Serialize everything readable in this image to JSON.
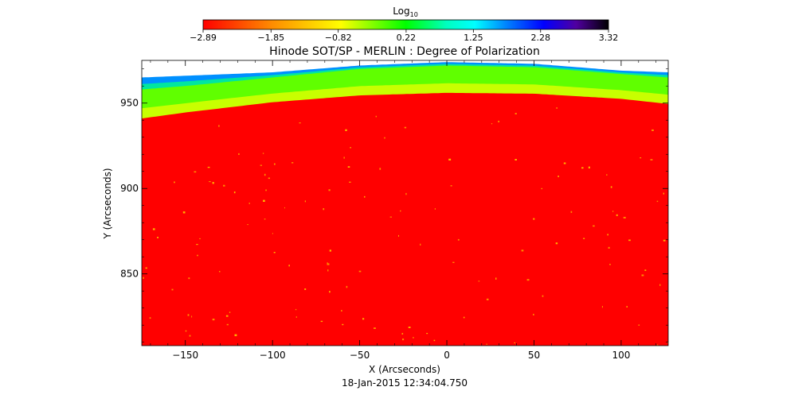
{
  "chart_data": {
    "type": "heatmap",
    "title": "Hinode SOT/SP - MERLIN : Degree of Polarization",
    "xlabel": "X (Arcseconds)",
    "ylabel": "Y (Arcseconds)",
    "date_label": "18-Jan-2015 12:34:04.750",
    "xlim": [
      -175,
      127
    ],
    "ylim": [
      808,
      975
    ],
    "xticks": [
      -150,
      -100,
      -50,
      0,
      50,
      100
    ],
    "yticks": [
      850,
      900,
      950
    ],
    "xtick_labels": [
      "−150",
      "−100",
      "−50",
      "0",
      "50",
      "100"
    ],
    "ytick_labels": [
      "850",
      "900",
      "950"
    ],
    "grid": false,
    "colorbar": {
      "label_base": "Log",
      "label_sub": "10",
      "min": -2.89,
      "max": 3.32,
      "tick_labels": [
        "−2.89",
        "−1.85",
        "−0.82",
        "0.22",
        "1.25",
        "2.28",
        "3.32"
      ],
      "tick_values": [
        -2.89,
        -1.85,
        -0.82,
        0.22,
        1.25,
        2.28,
        3.32
      ],
      "colors": [
        "#ff0000",
        "#ffff00",
        "#00ff00",
        "#00ffff",
        "#0000ff",
        "#5000a0",
        "#000000"
      ]
    },
    "limb_profile": {
      "x": [
        -175,
        -150,
        -100,
        -50,
        0,
        50,
        100,
        127
      ],
      "limb_y": [
        941,
        944.5,
        950.5,
        954.5,
        956,
        955.5,
        952.5,
        949.5
      ],
      "green_top_y": [
        958,
        960,
        965,
        970,
        972,
        971,
        967,
        965
      ],
      "cyan_top_y": [
        965,
        966,
        968,
        972,
        974,
        973,
        969,
        968
      ]
    },
    "interior_value": -2.89
  }
}
